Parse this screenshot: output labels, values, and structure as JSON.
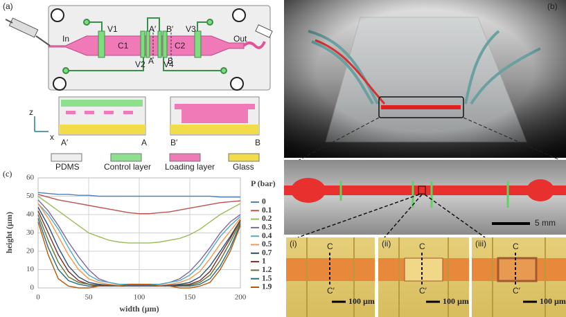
{
  "panel_a": {
    "label": "(a)",
    "inlet": "In",
    "outlet": "Out",
    "valves": [
      "V1",
      "V2",
      "V3",
      "V4"
    ],
    "chambers": [
      "C1",
      "C2"
    ],
    "section_marks": [
      "A′",
      "A",
      "B′",
      "B"
    ],
    "axes": [
      "z",
      "x"
    ],
    "cross_section_labels": [
      "A′",
      "A",
      "B′",
      "B"
    ],
    "legend": [
      "PDMS",
      "Control layer",
      "Loading layer",
      "Glass"
    ]
  },
  "panel_b": {
    "label": "(b)",
    "scale_bar": "5 mm",
    "insets": [
      {
        "label": "(i)",
        "marks": [
          "C",
          "C′"
        ],
        "scale_bar": "100 µm"
      },
      {
        "label": "(ii)",
        "marks": [
          "C",
          "C′"
        ],
        "scale_bar": "100 µm"
      },
      {
        "label": "(iii)",
        "marks": [
          "C",
          "C′"
        ],
        "scale_bar": "100 µm"
      }
    ]
  },
  "chart_data": {
    "type": "line",
    "panel_label": "(c)",
    "x_label": "width (µm)",
    "y_label": "height (µm)",
    "legend_title": "P (bar)",
    "xlim": [
      0,
      200
    ],
    "xticks": [
      0,
      50,
      100,
      150,
      200
    ],
    "ylim": [
      0,
      60
    ],
    "yticks": [
      0,
      10,
      20,
      30,
      40,
      50,
      60
    ],
    "grid": true,
    "x": [
      0,
      10,
      20,
      30,
      40,
      50,
      60,
      70,
      80,
      90,
      100,
      110,
      120,
      130,
      140,
      150,
      160,
      170,
      180,
      190,
      200
    ],
    "series": [
      {
        "name": "0",
        "color": "#4f81bd",
        "values": [
          52,
          51.5,
          51,
          51,
          50.5,
          50.5,
          50,
          50,
          50,
          50,
          50,
          50,
          50,
          50,
          50,
          50,
          50,
          50,
          49.5,
          49.5,
          49.5
        ]
      },
      {
        "name": "0.1",
        "color": "#c0504d",
        "values": [
          51,
          49.5,
          48,
          47,
          46,
          45,
          44,
          43,
          42,
          41,
          40.5,
          40.5,
          41,
          41.5,
          42.5,
          43.5,
          44.5,
          45.5,
          46.5,
          47,
          47.5
        ]
      },
      {
        "name": "0.2",
        "color": "#9bbb59",
        "values": [
          50,
          46,
          42,
          38,
          34,
          30,
          28,
          26,
          25,
          24.5,
          24.5,
          24.5,
          25,
          26,
          27,
          29,
          32,
          36,
          40,
          43,
          46
        ]
      },
      {
        "name": "0.3",
        "color": "#8064a2",
        "values": [
          48,
          42,
          34,
          25,
          17,
          10,
          5,
          3,
          2,
          1.5,
          1.5,
          1.5,
          2,
          3,
          5,
          9,
          15,
          22,
          30,
          36,
          40
        ]
      },
      {
        "name": "0.4",
        "color": "#4bacc6",
        "values": [
          46,
          40,
          32,
          22,
          13,
          7,
          4,
          3,
          2,
          2,
          2,
          2,
          2,
          3,
          4,
          7,
          12,
          20,
          28,
          34,
          39
        ]
      },
      {
        "name": "0.5",
        "color": "#f79646",
        "values": [
          46,
          38,
          28,
          18,
          10,
          5,
          3,
          2,
          1.5,
          1,
          1,
          1,
          1.5,
          2,
          3,
          5,
          9,
          16,
          24,
          31,
          38
        ]
      },
      {
        "name": "0.7",
        "color": "#2c4d75",
        "values": [
          44,
          34,
          22,
          12,
          6,
          3,
          2,
          1.5,
          1,
          1,
          1,
          1,
          1,
          1.5,
          2,
          3,
          6,
          12,
          20,
          28,
          37
        ]
      },
      {
        "name": "1",
        "color": "#772c2a",
        "values": [
          42,
          30,
          18,
          9,
          4,
          2,
          1.5,
          1,
          1,
          1,
          1,
          1,
          1,
          1,
          1.5,
          2,
          4,
          9,
          18,
          27,
          37
        ]
      },
      {
        "name": "1.2",
        "color": "#5f7530",
        "values": [
          40,
          26,
          14,
          6,
          3,
          2,
          1,
          1,
          1,
          1,
          1,
          1,
          1,
          1,
          1,
          1.5,
          3,
          7,
          15,
          25,
          36
        ]
      },
      {
        "name": "1.5",
        "color": "#276a7c",
        "values": [
          38,
          22,
          10,
          4,
          2,
          1,
          1,
          1,
          1,
          1,
          1,
          1,
          1,
          1,
          1,
          1,
          2,
          5,
          12,
          22,
          35
        ]
      },
      {
        "name": "1.9",
        "color": "#b65708",
        "values": [
          36,
          18,
          5,
          1,
          0,
          0,
          1,
          1,
          1,
          2,
          2,
          2,
          1,
          1,
          0,
          0,
          1,
          3,
          10,
          20,
          34
        ]
      }
    ]
  }
}
